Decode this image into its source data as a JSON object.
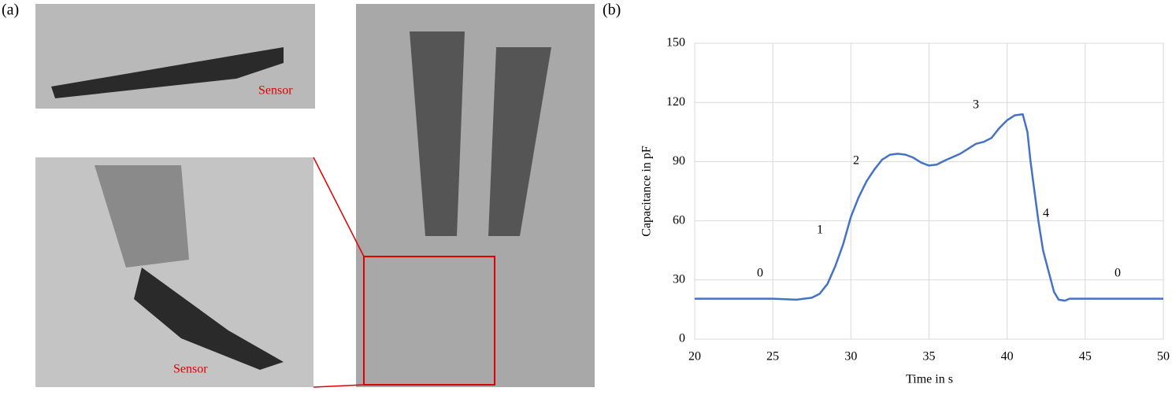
{
  "panel_a": {
    "label": "(a)",
    "sensor_labels": [
      "Sensor",
      "Sensor"
    ]
  },
  "chart_data": {
    "type": "line",
    "panel_label": "(b)",
    "x_label": "Time in s",
    "y_label": "Capacitance in pF",
    "annotations": [
      "0",
      "1",
      "2",
      "3",
      "4",
      "0"
    ],
    "grid": true,
    "xlim": [
      20,
      50
    ],
    "xticks": [
      20,
      25,
      30,
      35,
      40,
      45,
      50
    ],
    "ylim": [
      0,
      150
    ],
    "yticks": [
      0,
      30,
      60,
      90,
      120,
      150
    ],
    "x": [
      20,
      25,
      26.5,
      27.5,
      28,
      28.5,
      29,
      29.5,
      30,
      30.5,
      31,
      31.5,
      32,
      32.5,
      33,
      33.5,
      34,
      34.5,
      35,
      35.5,
      36,
      37,
      38,
      38.5,
      39,
      39.5,
      40,
      40.5,
      41,
      41.3,
      41.5,
      41.8,
      42,
      42.3,
      42.7,
      43,
      43.3,
      43.7,
      44,
      45,
      50
    ],
    "series": [
      {
        "color": "#4472c4",
        "values": [
          20.5,
          20.5,
          20,
          21,
          23,
          28,
          37,
          48,
          62,
          72,
          80,
          86,
          91,
          93.5,
          94,
          93.5,
          92,
          89.5,
          88,
          88.5,
          90.5,
          94,
          99,
          100,
          102,
          107,
          111,
          113.5,
          114,
          105,
          90,
          72,
          60,
          45,
          33,
          24,
          20,
          19.5,
          20.5,
          20.5,
          20.5
        ]
      }
    ]
  }
}
